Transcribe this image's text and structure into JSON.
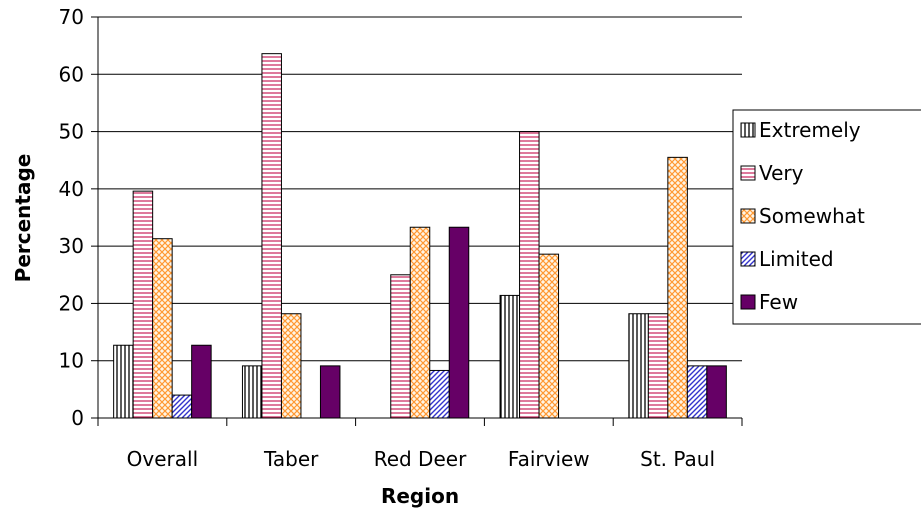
{
  "chart_data": {
    "type": "bar",
    "xlabel": "Region",
    "ylabel": "Percentage",
    "ylim": [
      0,
      70
    ],
    "yticks": [
      0,
      10,
      20,
      30,
      40,
      50,
      60,
      70
    ],
    "grid": true,
    "legend_position": "right",
    "categories": [
      "Overall",
      "Taber",
      "Red Deer",
      "Fairview",
      "St. Paul"
    ],
    "series": [
      {
        "name": "Extremely",
        "values": [
          12.7,
          9.1,
          0,
          21.4,
          18.2
        ],
        "pattern": "vertical",
        "color": "#000000"
      },
      {
        "name": "Very",
        "values": [
          39.6,
          63.6,
          25.0,
          50.0,
          18.2
        ],
        "pattern": "horizontal",
        "color": "#cc3366"
      },
      {
        "name": "Somewhat",
        "values": [
          31.3,
          18.2,
          33.3,
          28.6,
          45.5
        ],
        "pattern": "crosshatch",
        "color": "#ff9933"
      },
      {
        "name": "Limited",
        "values": [
          4.0,
          0,
          8.3,
          0,
          9.1
        ],
        "pattern": "diagonal",
        "color": "#3333cc"
      },
      {
        "name": "Few",
        "values": [
          12.7,
          9.1,
          33.3,
          0,
          9.1
        ],
        "pattern": "solid",
        "color": "#660066"
      }
    ]
  }
}
